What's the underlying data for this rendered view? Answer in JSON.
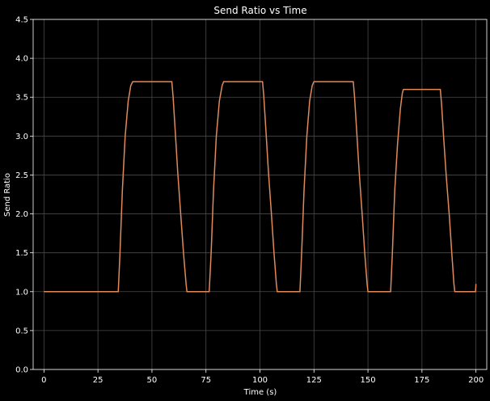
{
  "chart_data": {
    "type": "line",
    "title": "Send Ratio vs Time",
    "xlabel": "Time (s)",
    "ylabel": "Send Ratio",
    "xlim": [
      -5,
      205
    ],
    "ylim": [
      0,
      4.5
    ],
    "grid": true,
    "x_ticks": [
      0,
      25,
      50,
      75,
      100,
      125,
      150,
      175,
      200
    ],
    "x_tick_labels": [
      "0",
      "25",
      "50",
      "75",
      "100",
      "125",
      "150",
      "175",
      "200"
    ],
    "y_ticks": [
      0,
      0.5,
      1.0,
      1.5,
      2.0,
      2.5,
      3.0,
      3.5,
      4.0,
      4.5
    ],
    "y_tick_labels": [
      "0.0",
      "0.5",
      "1.0",
      "1.5",
      "2.0",
      "2.5",
      "3.0",
      "3.5",
      "4.0",
      "4.5"
    ],
    "colors": {
      "background": "#000000",
      "line": "#e0895a",
      "grid": "#4a4a4a",
      "text": "#ffffff"
    },
    "series": [
      {
        "x": [
          0,
          34.4,
          35.2,
          36.3,
          37.6,
          39.0,
          40.2,
          41.1,
          59.2,
          59.8,
          60.7,
          61.9,
          63.3,
          64.6,
          65.8,
          66.2,
          76.5,
          77.4,
          78.5,
          79.8,
          81.2,
          82.5,
          83.2,
          101.2,
          101.8,
          102.7,
          103.9,
          105.3,
          106.5,
          107.6,
          108.0,
          118.5,
          119.3,
          120.4,
          121.7,
          123.0,
          124.2,
          125.0,
          143.2,
          143.8,
          144.7,
          145.9,
          147.3,
          148.5,
          149.6,
          150.0,
          160.5,
          161.3,
          162.4,
          163.7,
          165.0,
          165.9,
          166.4,
          183.5,
          184.1,
          185.0,
          186.2,
          187.6,
          188.8,
          189.8,
          190.2,
          199.8,
          200.0
        ],
        "y": [
          1.0,
          1.0,
          1.5,
          2.3,
          3.0,
          3.45,
          3.65,
          3.7,
          3.7,
          3.5,
          3.1,
          2.55,
          2.0,
          1.5,
          1.1,
          1.0,
          1.0,
          1.5,
          2.3,
          3.0,
          3.45,
          3.65,
          3.7,
          3.7,
          3.5,
          3.1,
          2.55,
          2.0,
          1.5,
          1.1,
          1.0,
          1.0,
          1.5,
          2.3,
          3.0,
          3.45,
          3.65,
          3.7,
          3.7,
          3.5,
          3.1,
          2.55,
          2.0,
          1.5,
          1.1,
          1.0,
          1.0,
          1.5,
          2.3,
          2.9,
          3.35,
          3.55,
          3.6,
          3.6,
          3.4,
          3.0,
          2.5,
          2.0,
          1.5,
          1.1,
          1.0,
          1.0,
          1.1
        ]
      }
    ]
  }
}
